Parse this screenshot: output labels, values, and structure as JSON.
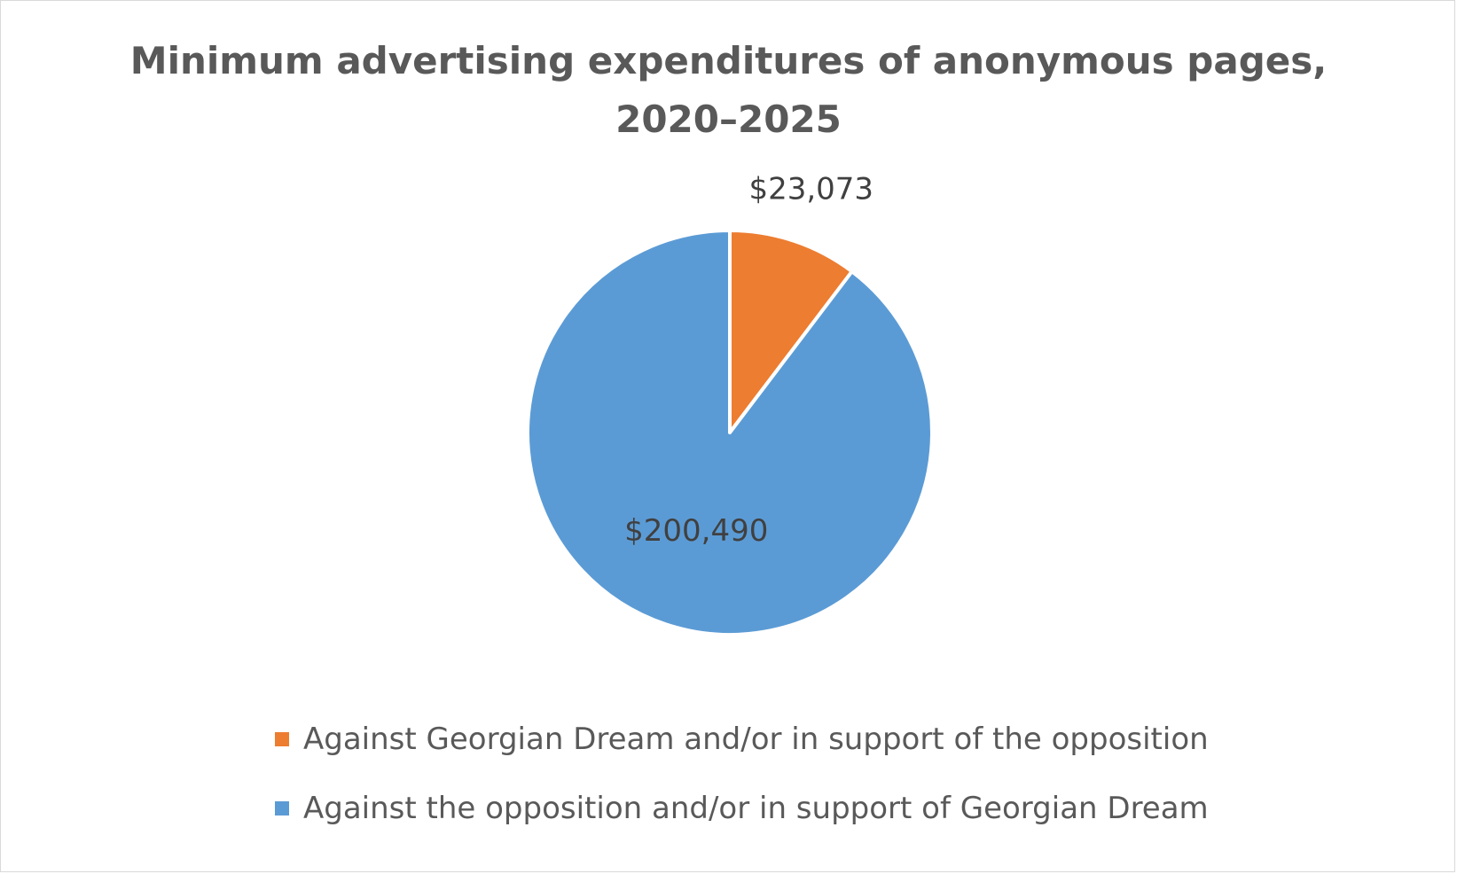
{
  "chart_data": {
    "type": "pie",
    "title_lines": [
      "Minimum advertising expenditures of anonymous pages,",
      "2020–2025"
    ],
    "categories": [
      "Against Georgian Dream and/or in support of the opposition",
      "Against the opposition and/or in support of Georgian Dream"
    ],
    "values": [
      23073,
      200490
    ],
    "data_labels": [
      "$23,073",
      "$200,490"
    ],
    "colors": [
      "#ED7D31",
      "#5B9BD5"
    ],
    "legend_position": "bottom"
  }
}
